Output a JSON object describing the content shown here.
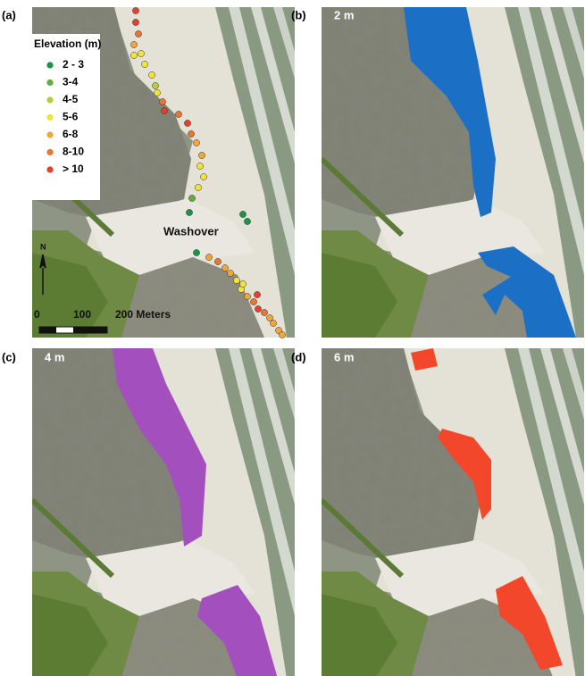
{
  "panels": [
    {
      "label": "(a)"
    },
    {
      "label": "(b)",
      "depth": "2 m",
      "flood_color": "#1b70c6"
    },
    {
      "label": "(c)",
      "depth": "4 m",
      "flood_color": "#a34fbd"
    },
    {
      "label": "(d)",
      "depth": "6 m",
      "flood_color": "#f2472a"
    }
  ],
  "legend": {
    "title": "Elevation (m)",
    "items": [
      {
        "label": "2 - 3",
        "color": "#1a9447"
      },
      {
        "label": "3-4",
        "color": "#5fae3c"
      },
      {
        "label": "4-5",
        "color": "#b5cf3a"
      },
      {
        "label": "5-6",
        "color": "#f3e23a"
      },
      {
        "label": "6-8",
        "color": "#f0a63a"
      },
      {
        "label": "8-10",
        "color": "#e8762e"
      },
      {
        "label": "> 10",
        "color": "#e2422a"
      }
    ]
  },
  "annotation": "Washover",
  "north": "N",
  "scale_bar": {
    "labels": [
      "0",
      "100",
      "200 Meters"
    ]
  }
}
